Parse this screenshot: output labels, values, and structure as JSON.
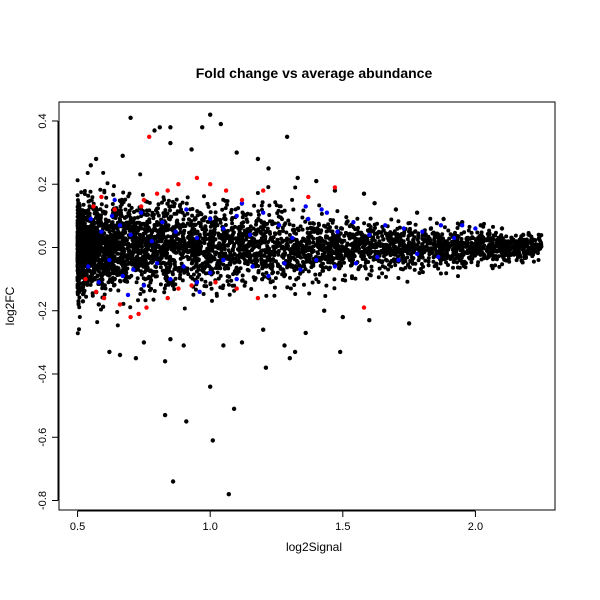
{
  "chart_data": {
    "type": "scatter",
    "title": "Fold change vs average abundance",
    "xlabel": "log2Signal",
    "ylabel": "log2FC",
    "xlim": [
      0.43,
      2.3
    ],
    "ylim": [
      -0.83,
      0.46
    ],
    "xticks": [
      "0.5",
      "1.0",
      "1.5",
      "2.0"
    ],
    "yticks": [
      "-0.8",
      "-0.6",
      "-0.4",
      "-0.2",
      "0.0",
      "0.2",
      "0.4"
    ],
    "grid": false,
    "legend": "none",
    "colors": {
      "background": "#000000",
      "highlight_a": "#0000ff",
      "highlight_b": "#ff0000"
    },
    "series": [
      {
        "color": "#000000",
        "points": [
          [
            0.7,
            0.41
          ],
          [
            0.81,
            0.38
          ],
          [
            0.85,
            0.38
          ],
          [
            1.0,
            0.42
          ],
          [
            1.04,
            0.39
          ],
          [
            0.97,
            0.38
          ],
          [
            0.79,
            0.37
          ],
          [
            1.29,
            0.35
          ],
          [
            0.85,
            0.33
          ],
          [
            0.93,
            0.31
          ],
          [
            0.57,
            0.28
          ],
          [
            0.55,
            0.26
          ],
          [
            0.67,
            0.29
          ],
          [
            1.1,
            0.3
          ],
          [
            1.18,
            0.28
          ],
          [
            1.22,
            0.25
          ],
          [
            1.33,
            0.22
          ],
          [
            1.4,
            0.21
          ],
          [
            1.47,
            0.18
          ],
          [
            1.58,
            0.17
          ],
          [
            1.62,
            0.14
          ],
          [
            1.7,
            0.12
          ],
          [
            1.78,
            0.11
          ],
          [
            1.88,
            0.09
          ],
          [
            1.95,
            0.08
          ],
          [
            2.02,
            0.07
          ],
          [
            2.1,
            0.06
          ],
          [
            2.18,
            0.04
          ],
          [
            2.24,
            0.03
          ],
          [
            2.2,
            0.0
          ],
          [
            0.62,
            -0.33
          ],
          [
            0.66,
            -0.34
          ],
          [
            0.72,
            -0.35
          ],
          [
            0.75,
            -0.3
          ],
          [
            0.83,
            -0.36
          ],
          [
            0.85,
            -0.29
          ],
          [
            0.9,
            -0.31
          ],
          [
            1.05,
            -0.31
          ],
          [
            1.12,
            -0.3
          ],
          [
            1.2,
            -0.26
          ],
          [
            1.21,
            -0.38
          ],
          [
            1.28,
            -0.31
          ],
          [
            1.3,
            -0.35
          ],
          [
            1.32,
            -0.33
          ],
          [
            1.36,
            -0.27
          ],
          [
            1.49,
            -0.33
          ],
          [
            1.5,
            -0.22
          ],
          [
            1.6,
            -0.23
          ],
          [
            1.75,
            -0.24
          ],
          [
            1.43,
            -0.2
          ],
          [
            0.83,
            -0.53
          ],
          [
            0.91,
            -0.55
          ],
          [
            1.0,
            -0.44
          ],
          [
            1.09,
            -0.51
          ],
          [
            1.01,
            -0.61
          ],
          [
            0.86,
            -0.74
          ],
          [
            1.07,
            -0.78
          ],
          [
            0.52,
            -0.17
          ],
          [
            0.58,
            -0.18
          ],
          [
            2.15,
            -0.02
          ]
        ]
      },
      {
        "color": "#0000ff",
        "points": [
          [
            0.55,
            0.09
          ],
          [
            0.59,
            0.05
          ],
          [
            0.63,
            0.1
          ],
          [
            0.66,
            0.07
          ],
          [
            0.7,
            0.04
          ],
          [
            0.74,
            0.11
          ],
          [
            0.78,
            0.02
          ],
          [
            0.82,
            0.08
          ],
          [
            0.87,
            0.05
          ],
          [
            0.91,
            0.12
          ],
          [
            0.95,
            0.03
          ],
          [
            1.0,
            0.09
          ],
          [
            1.05,
            0.06
          ],
          [
            1.1,
            0.1
          ],
          [
            1.15,
            0.04
          ],
          [
            1.2,
            0.11
          ],
          [
            1.26,
            0.07
          ],
          [
            1.31,
            0.03
          ],
          [
            1.37,
            0.09
          ],
          [
            1.42,
            0.12
          ],
          [
            1.48,
            0.05
          ],
          [
            1.54,
            0.08
          ],
          [
            1.6,
            0.04
          ],
          [
            1.66,
            0.07
          ],
          [
            1.73,
            0.06
          ],
          [
            1.8,
            0.05
          ],
          [
            1.87,
            0.07
          ],
          [
            1.95,
            0.07
          ],
          [
            2.0,
            0.06
          ],
          [
            1.92,
            0.03
          ],
          [
            0.54,
            -0.06
          ],
          [
            0.58,
            -0.11
          ],
          [
            0.62,
            -0.04
          ],
          [
            0.67,
            -0.09
          ],
          [
            0.71,
            -0.07
          ],
          [
            0.75,
            -0.12
          ],
          [
            0.8,
            -0.05
          ],
          [
            0.85,
            -0.1
          ],
          [
            0.9,
            -0.06
          ],
          [
            0.95,
            -0.11
          ],
          [
            1.0,
            -0.08
          ],
          [
            1.05,
            -0.04
          ],
          [
            1.1,
            -0.1
          ],
          [
            1.16,
            -0.06
          ],
          [
            1.22,
            -0.09
          ],
          [
            1.28,
            -0.05
          ],
          [
            1.34,
            -0.07
          ],
          [
            1.4,
            -0.04
          ],
          [
            1.47,
            -0.06
          ],
          [
            1.55,
            -0.05
          ],
          [
            1.63,
            -0.03
          ],
          [
            1.71,
            -0.04
          ],
          [
            1.78,
            -0.02
          ],
          [
            1.86,
            -0.03
          ],
          [
            0.64,
            0.15
          ],
          [
            0.69,
            -0.15
          ],
          [
            1.12,
            0.14
          ],
          [
            0.96,
            -0.14
          ],
          [
            1.36,
            0.13
          ],
          [
            1.44,
            0.11
          ]
        ]
      },
      {
        "color": "#ff0000",
        "points": [
          [
            0.77,
            0.35
          ],
          [
            0.59,
            0.16
          ],
          [
            0.56,
            0.13
          ],
          [
            0.64,
            0.12
          ],
          [
            0.74,
            0.13
          ],
          [
            0.75,
            0.15
          ],
          [
            0.8,
            0.17
          ],
          [
            0.84,
            0.18
          ],
          [
            0.88,
            0.2
          ],
          [
            0.95,
            0.22
          ],
          [
            1.0,
            0.2
          ],
          [
            1.06,
            0.18
          ],
          [
            1.12,
            0.15
          ],
          [
            1.2,
            0.18
          ],
          [
            1.37,
            0.16
          ],
          [
            1.47,
            0.19
          ],
          [
            0.53,
            -0.1
          ],
          [
            0.57,
            -0.14
          ],
          [
            0.6,
            -0.16
          ],
          [
            0.66,
            -0.18
          ],
          [
            0.73,
            -0.21
          ],
          [
            0.76,
            -0.19
          ],
          [
            0.84,
            -0.16
          ],
          [
            0.88,
            -0.13
          ],
          [
            0.93,
            -0.12
          ],
          [
            1.02,
            -0.11
          ],
          [
            1.1,
            -0.13
          ],
          [
            1.18,
            -0.16
          ],
          [
            1.58,
            -0.19
          ],
          [
            0.7,
            -0.22
          ]
        ]
      }
    ]
  }
}
